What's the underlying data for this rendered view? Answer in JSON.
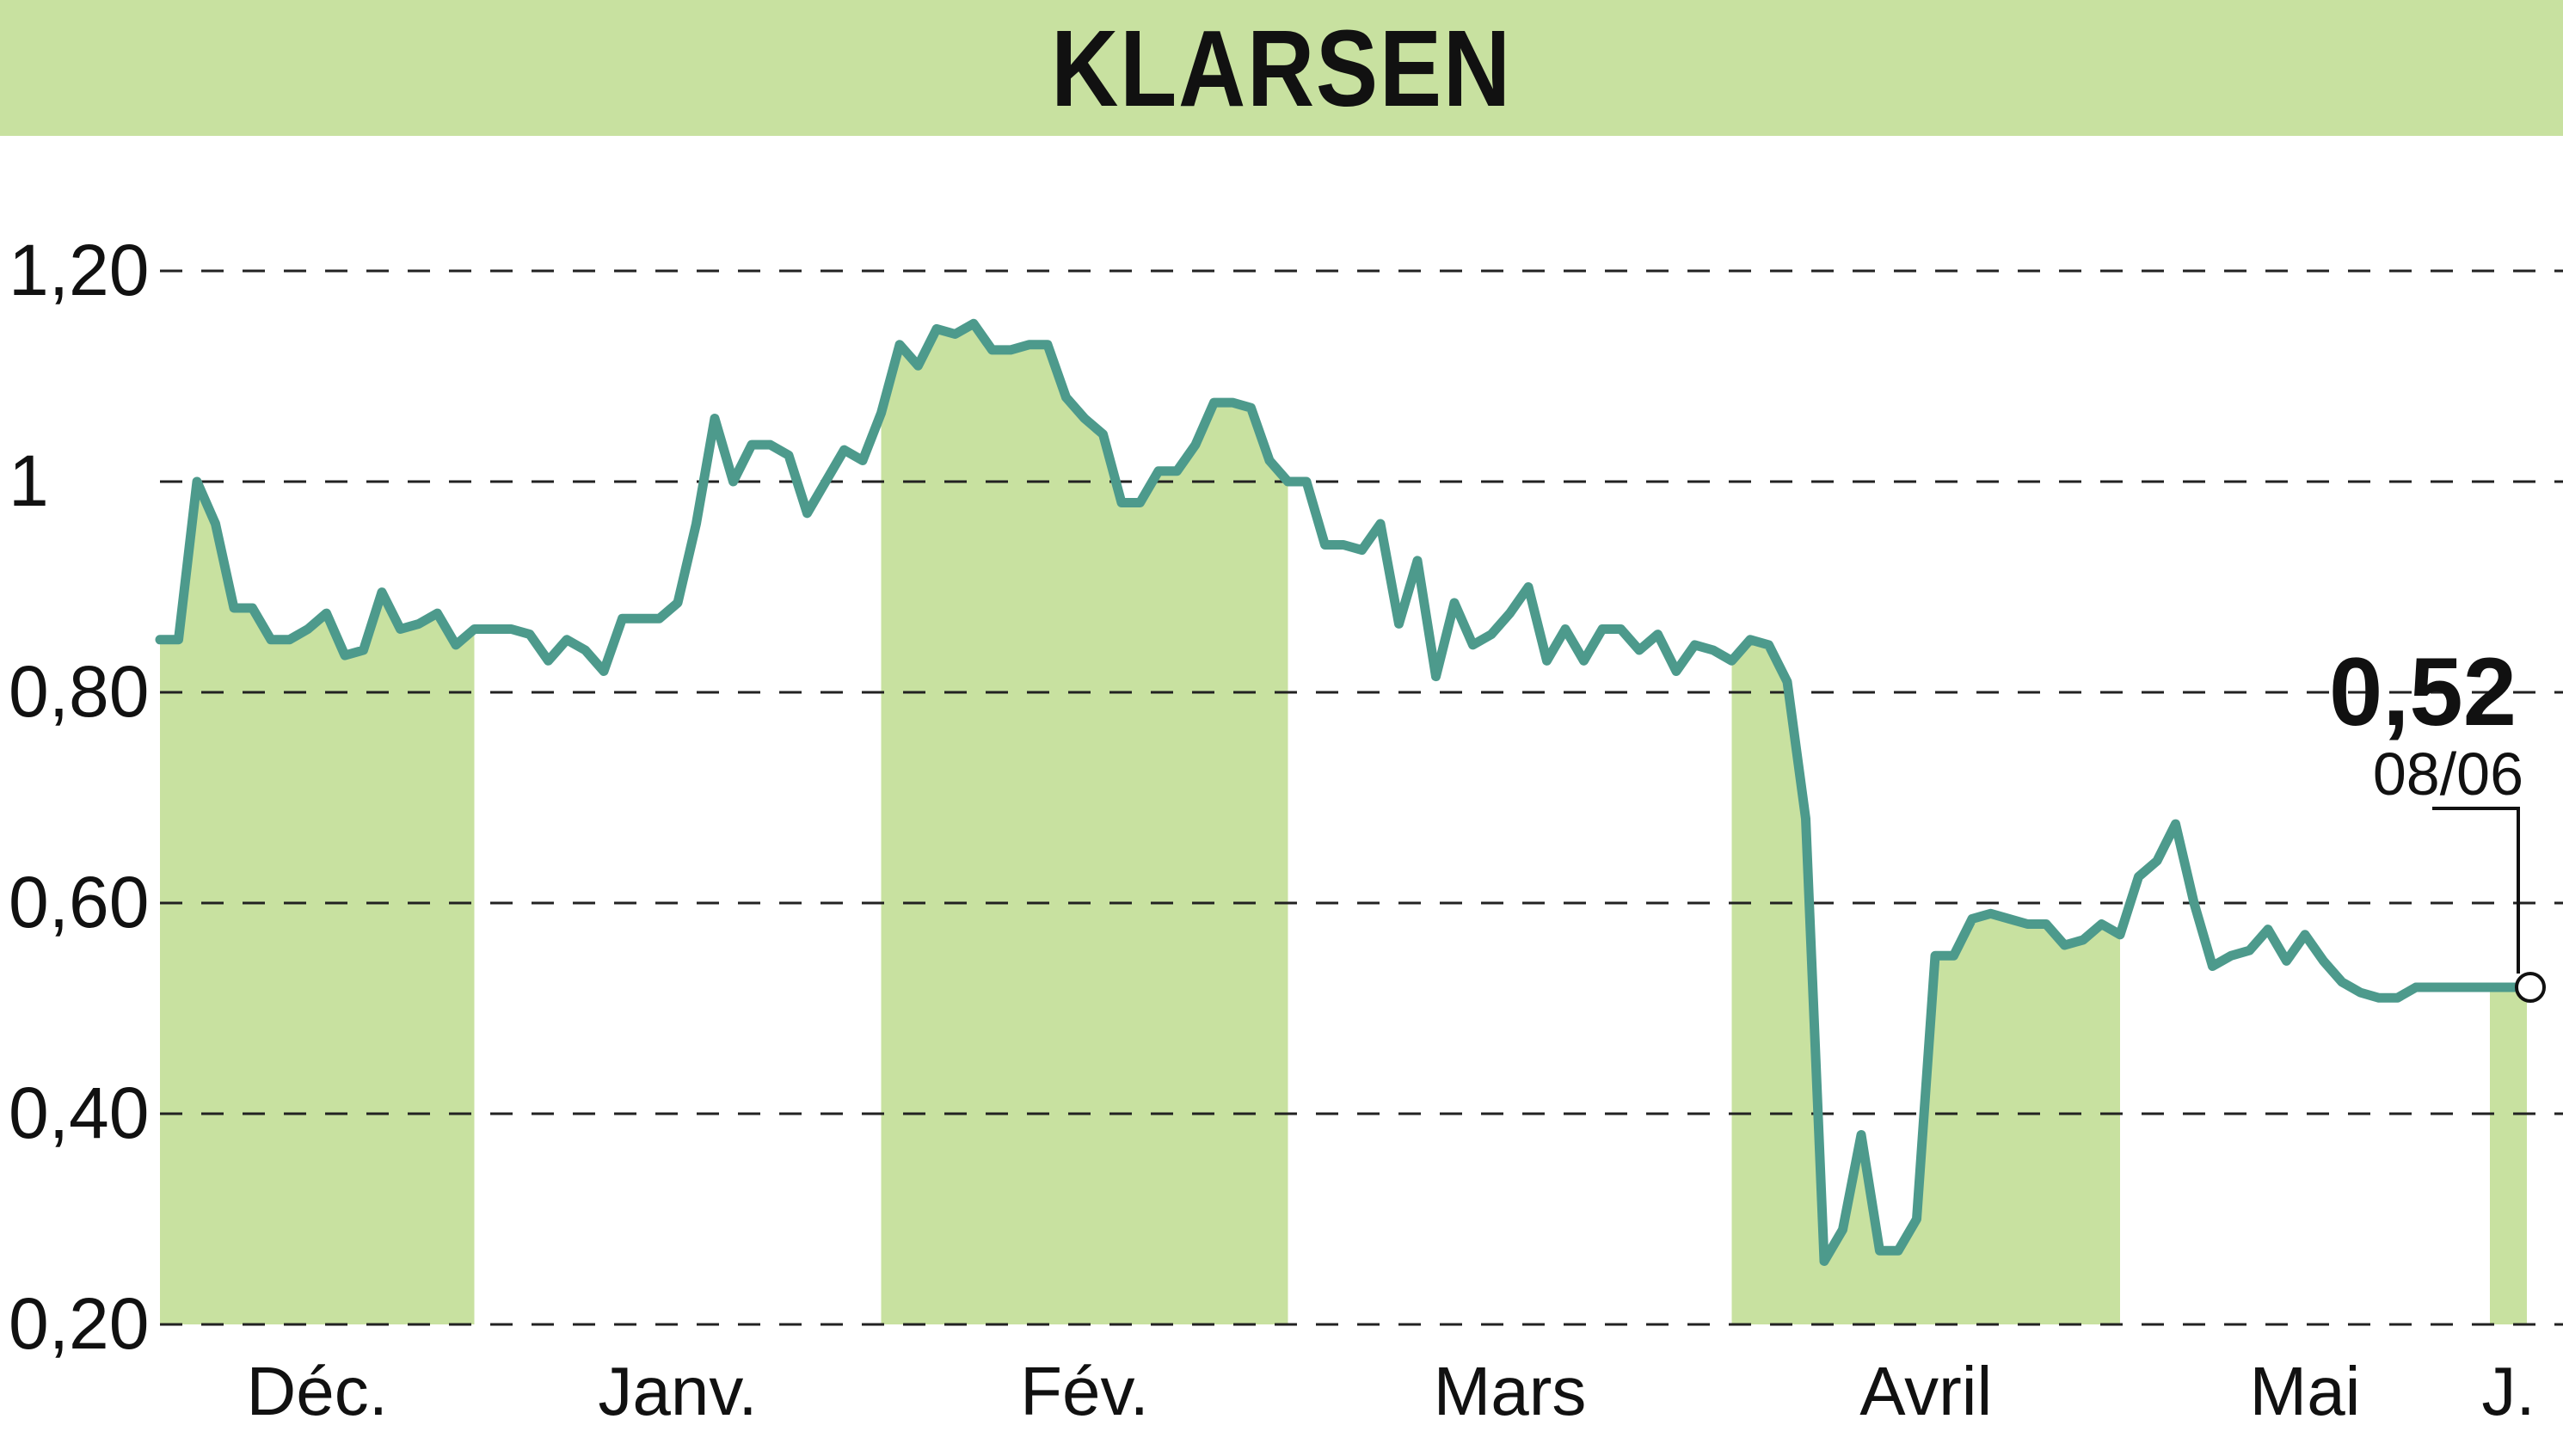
{
  "title": "KLARSEN",
  "colors": {
    "band": "#c8e1a0",
    "line": "#4d9a8c",
    "grid": "#222222",
    "text": "#111111"
  },
  "chart_data": {
    "type": "line",
    "title": "KLARSEN",
    "xlabel": "",
    "ylabel": "",
    "ylim": [
      0.2,
      1.2
    ],
    "ytick_labels": [
      "1,20",
      "1",
      "0,80",
      "0,60",
      "0,40",
      "0,20"
    ],
    "ytick_values": [
      1.2,
      1.0,
      0.8,
      0.6,
      0.4,
      0.2
    ],
    "grid": "horizontal dashed",
    "months": [
      {
        "label": "Déc.",
        "start": 0,
        "end": 17,
        "shaded": true
      },
      {
        "label": "Janv.",
        "start": 17,
        "end": 39,
        "shaded": false
      },
      {
        "label": "Fév.",
        "start": 39,
        "end": 61,
        "shaded": true
      },
      {
        "label": "Mars",
        "start": 61,
        "end": 85,
        "shaded": false
      },
      {
        "label": "Avril",
        "start": 85,
        "end": 106,
        "shaded": true
      },
      {
        "label": "Mai",
        "start": 106,
        "end": 126,
        "shaded": false
      },
      {
        "label": "J.",
        "start": 126,
        "end": 132,
        "shaded": true
      }
    ],
    "series": [
      {
        "values": [
          0.85,
          0.85,
          1.0,
          0.96,
          0.88,
          0.88,
          0.85,
          0.85,
          0.86,
          0.875,
          0.835,
          0.84,
          0.895,
          0.86,
          0.865,
          0.875,
          0.845,
          0.86,
          0.86,
          0.86,
          0.855,
          0.83,
          0.85,
          0.84,
          0.82,
          0.87,
          0.87,
          0.87,
          0.885,
          0.96,
          1.06,
          1.0,
          1.035,
          1.035,
          1.025,
          0.97,
          1.0,
          1.03,
          1.02,
          1.065,
          1.13,
          1.11,
          1.145,
          1.14,
          1.15,
          1.125,
          1.125,
          1.13,
          1.13,
          1.08,
          1.06,
          1.045,
          0.98,
          0.98,
          1.01,
          1.01,
          1.035,
          1.075,
          1.075,
          1.07,
          1.02,
          1.0,
          1.0,
          0.94,
          0.94,
          0.935,
          0.96,
          0.865,
          0.925,
          0.815,
          0.885,
          0.845,
          0.855,
          0.875,
          0.9,
          0.83,
          0.86,
          0.83,
          0.86,
          0.86,
          0.84,
          0.855,
          0.82,
          0.845,
          0.84,
          0.83,
          0.85,
          0.845,
          0.81,
          0.68,
          0.26,
          0.29,
          0.38,
          0.27,
          0.27,
          0.3,
          0.55,
          0.55,
          0.585,
          0.59,
          0.585,
          0.58,
          0.58,
          0.56,
          0.565,
          0.58,
          0.57,
          0.625,
          0.64,
          0.675,
          0.6,
          0.54,
          0.55,
          0.555,
          0.575,
          0.545,
          0.57,
          0.545,
          0.525,
          0.515,
          0.51,
          0.51,
          0.52,
          0.52,
          0.52,
          0.52,
          0.52,
          0.52,
          0.52
        ]
      }
    ],
    "last": {
      "value_label": "0,52",
      "date_label": "08/06"
    }
  }
}
